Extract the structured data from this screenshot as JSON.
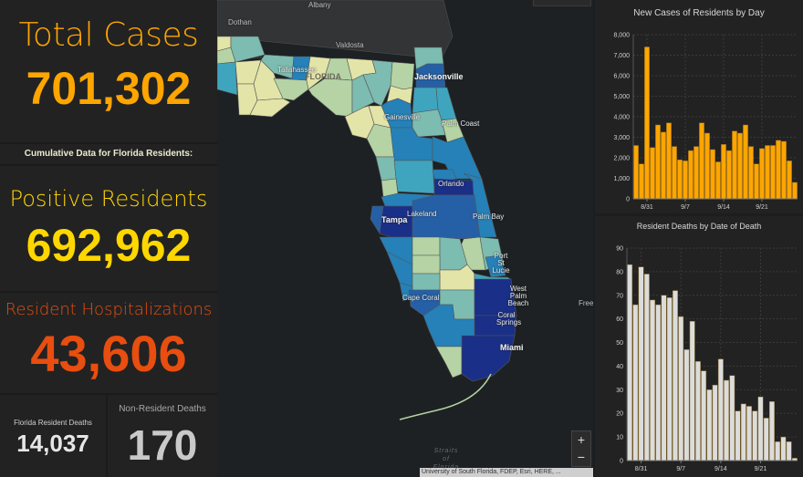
{
  "indicators": {
    "total_cases": {
      "label": "Total Cases",
      "value": "701,302",
      "color": "#ffa500"
    },
    "cumulative_header": "Cumulative Data for Florida Residents:",
    "positive_residents": {
      "label": "Positive Residents",
      "value": "692,962",
      "color": "#ffd700"
    },
    "resident_hospitalizations": {
      "label": "Resident Hospitalizations",
      "value": "43,606",
      "color": "#e84e0f"
    },
    "florida_resident_deaths": {
      "label": "Florida Resident Deaths",
      "value": "14,037"
    },
    "non_resident_deaths": {
      "label": "Non-Resident Deaths",
      "value": "170"
    }
  },
  "map": {
    "place_labels": {
      "albany": "Albany",
      "dothan": "Dothan",
      "valdosta": "Valdosta",
      "tallahassee": "Tallahassee",
      "florida": "FLORIDA",
      "jacksonville": "Jacksonville",
      "gainesville": "Gainesville",
      "palm_coast": "Palm Coast",
      "orlando": "Orlando",
      "lakeland": "Lakeland",
      "tampa": "Tampa",
      "palm_bay": "Palm Bay",
      "port_st_lucie": "Port St Lucie",
      "west_palm_beach": "West Palm Beach",
      "cape_coral": "Cape Coral",
      "coral_springs": "Coral Springs",
      "miami": "Miami",
      "freeport": "Freepo",
      "straits": "Straits of Florida"
    },
    "zoom_in_label": "+",
    "zoom_out_label": "−",
    "attribution": "University of South Florida, FDEP, Esri, HERE, ...",
    "color_scale": [
      "#e3e4a8",
      "#b5d3a4",
      "#7dbcb0",
      "#3fa4be",
      "#2581b8",
      "#2560a6",
      "#1a2f87"
    ]
  },
  "chart_data": [
    {
      "type": "bar",
      "title": "New Cases of Residents by Day",
      "xlabel": "",
      "ylabel": "",
      "color": "#ffa500",
      "ylim": [
        0,
        8000
      ],
      "yticks": [
        0,
        1000,
        2000,
        3000,
        4000,
        5000,
        6000,
        7000,
        8000
      ],
      "ytick_labels": [
        "0",
        "1,000",
        "2,000",
        "3,000",
        "4,000",
        "5,000",
        "6,000",
        "7,000",
        "8,000"
      ],
      "xtick_labels": [
        {
          "index": 2,
          "label": "8/31"
        },
        {
          "index": 9,
          "label": "9/7"
        },
        {
          "index": 16,
          "label": "9/14"
        },
        {
          "index": 23,
          "label": "9/21"
        }
      ],
      "values": [
        2600,
        1700,
        7400,
        2500,
        3600,
        3250,
        3700,
        2550,
        1900,
        1850,
        2350,
        2550,
        3700,
        3200,
        2400,
        1800,
        2650,
        2350,
        3300,
        3200,
        3600,
        2550,
        1700,
        2450,
        2600,
        2600,
        2850,
        2800,
        1850,
        800
      ],
      "grid": true
    },
    {
      "type": "bar",
      "title": "Resident Deaths by Date of Death",
      "xlabel": "",
      "ylabel": "",
      "color": "#dcdcdc",
      "ylim": [
        0,
        90
      ],
      "yticks": [
        0,
        10,
        20,
        30,
        40,
        50,
        60,
        70,
        80,
        90
      ],
      "ytick_labels": [
        "0",
        "10",
        "20",
        "30",
        "40",
        "50",
        "60",
        "70",
        "80",
        "90"
      ],
      "xtick_labels": [
        {
          "index": 2,
          "label": "8/31"
        },
        {
          "index": 9,
          "label": "9/7"
        },
        {
          "index": 16,
          "label": "9/14"
        },
        {
          "index": 23,
          "label": "9/21"
        }
      ],
      "values": [
        83,
        66,
        82,
        79,
        68,
        66,
        70,
        69,
        72,
        61,
        47,
        59,
        42,
        38,
        30,
        32,
        43,
        34,
        36,
        21,
        24,
        23,
        21,
        27,
        18,
        25,
        8,
        10,
        8,
        1
      ],
      "grid": true
    }
  ]
}
